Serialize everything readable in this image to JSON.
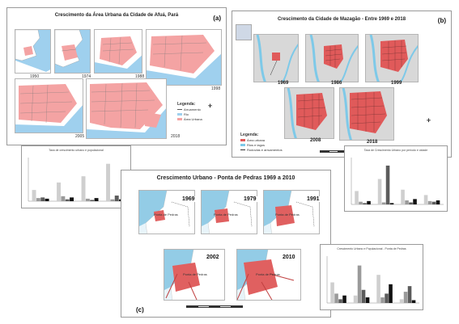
{
  "panel_a": {
    "title": "Crescimento da Área Urbana da Cidade de Afuá, Pará",
    "label": "(a)",
    "years": [
      "1950",
      "1974",
      "1988",
      "1998",
      "2005",
      "2018"
    ],
    "legend": {
      "title": "Legenda:",
      "items": [
        "Arruamento",
        "Rio",
        "Área Urbana"
      ]
    },
    "colors": {
      "urban": "#f4a3a3",
      "water": "#9fd0ee",
      "land": "#ffffff"
    }
  },
  "panel_b": {
    "title": "Crescimento da Cidade de Mazagão - Entre 1969 e 2018",
    "label": "(b)",
    "years": [
      "1969",
      "1986",
      "1999",
      "2008",
      "2018"
    ],
    "legend": {
      "title": "Legenda:",
      "items": [
        "Área urbana",
        "Rios e lagos",
        "Rodovias e arruamentos"
      ]
    },
    "colors": {
      "urban": "#e05a5a",
      "water": "#7ec9e8",
      "bg": "#d8d8d8"
    }
  },
  "panel_c": {
    "title": "Crescimento Urbano - Ponta de Pedras 1969 a 2010",
    "label": "(c)",
    "years": [
      "1969",
      "1979",
      "1991",
      "2002",
      "2010"
    ],
    "place_label": "Ponta de Pedras",
    "colors": {
      "urban": "#e06060",
      "water": "#5ab0d8",
      "bg": "#e8f4fa"
    }
  },
  "chart_left": {
    "title": "Taxa de crescimento urbano e populacional"
  },
  "chart_right": {
    "title": "Taxa de Crescimento Urbano por período e cidade"
  },
  "chart_bottom": {
    "title": "Crescimento Urbano e Populacional - Ponta de Pedras"
  },
  "chart_data": [
    {
      "type": "bar",
      "series": [
        {
          "name": "",
          "values": [
            18,
            30,
            40,
            60
          ]
        },
        {
          "name": "",
          "values": [
            5,
            8,
            4,
            3
          ]
        },
        {
          "name": "",
          "values": [
            6,
            3,
            2,
            9
          ]
        },
        {
          "name": "",
          "values": [
            4,
            6,
            5,
            3
          ]
        }
      ],
      "ylim": [
        0,
        70
      ]
    },
    {
      "type": "bar",
      "series": [
        {
          "name": "",
          "values": [
            20,
            38,
            22,
            14
          ]
        },
        {
          "name": "",
          "values": [
            4,
            3,
            6,
            5
          ]
        },
        {
          "name": "",
          "values": [
            2,
            58,
            3,
            4
          ]
        },
        {
          "name": "",
          "values": [
            5,
            2,
            8,
            6
          ]
        }
      ],
      "ylim": [
        0,
        70
      ]
    },
    {
      "type": "bar",
      "series": [
        {
          "name": "",
          "values": [
            22,
            8,
            30,
            4
          ]
        },
        {
          "name": "",
          "values": [
            10,
            40,
            6,
            12
          ]
        },
        {
          "name": "",
          "values": [
            4,
            14,
            10,
            18
          ]
        },
        {
          "name": "",
          "values": [
            8,
            6,
            20,
            3
          ]
        }
      ],
      "ylim": [
        0,
        50
      ]
    }
  ]
}
